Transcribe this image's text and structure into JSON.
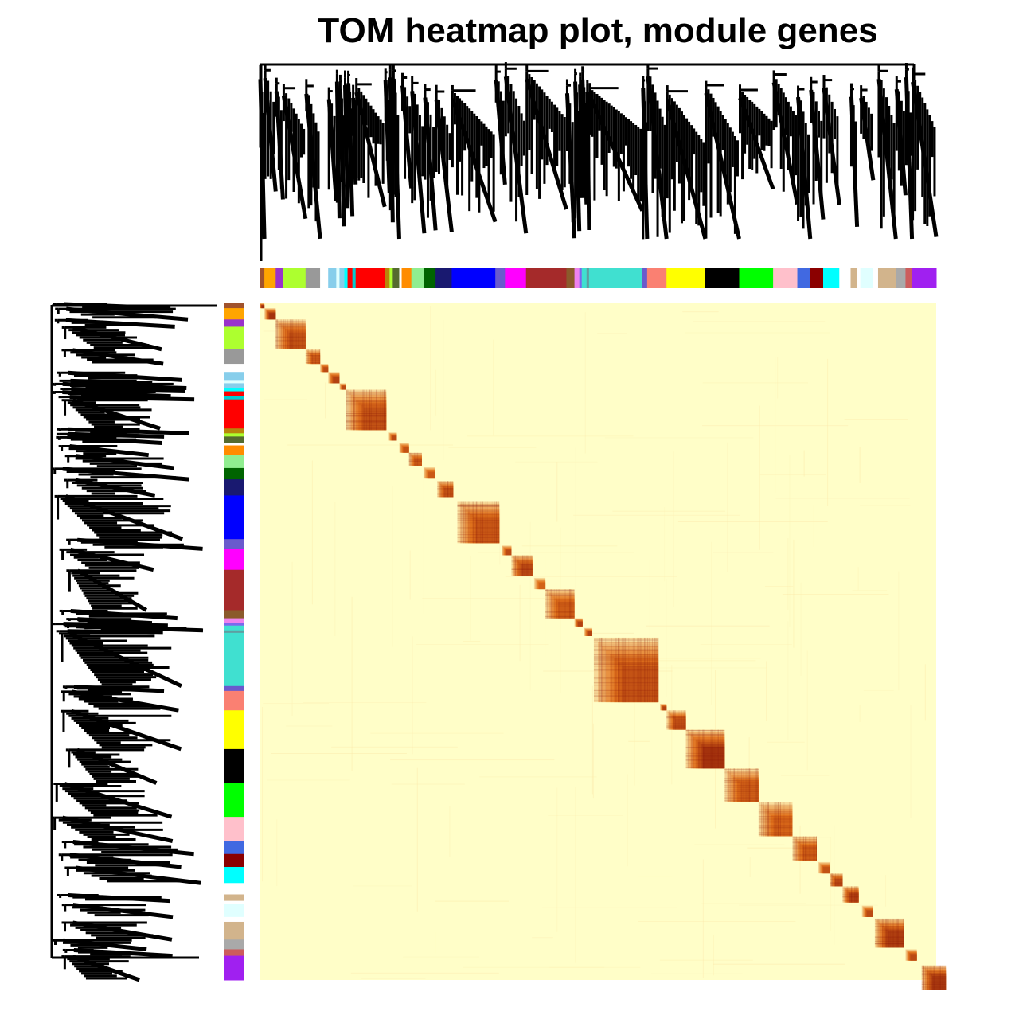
{
  "chart_data": {
    "type": "heatmap",
    "title": "TOM heatmap plot, module genes",
    "xlabel": "",
    "ylabel": "",
    "legend": "none",
    "grid": false,
    "palette": {
      "background": "#fffec8",
      "low": "#fbe6a6",
      "mid": "#e0701a",
      "high": "#8b1a0a",
      "dendrogram": "#000000"
    },
    "modules": [
      {
        "color": "#a0522d",
        "size": 6
      },
      {
        "color": "#ffa500",
        "size": 14
      },
      {
        "color": "#9932cc",
        "size": 9
      },
      {
        "color": "#adff2f",
        "size": 28
      },
      {
        "color": "#999999",
        "size": 18
      },
      {
        "color": "#ffffff",
        "size": 10
      },
      {
        "color": "#87ceeb",
        "size": 10
      },
      {
        "color": "#e0ffff",
        "size": 4
      },
      {
        "color": "#87ceeb",
        "size": 6
      },
      {
        "color": "#00ffff",
        "size": 4
      },
      {
        "color": "#ff0000",
        "size": 6
      },
      {
        "color": "#00ced1",
        "size": 4
      },
      {
        "color": "#ff0000",
        "size": 36
      },
      {
        "color": "#b8860b",
        "size": 6
      },
      {
        "color": "#adff2f",
        "size": 4
      },
      {
        "color": "#556b2f",
        "size": 8
      },
      {
        "color": "#ffffff",
        "size": 3
      },
      {
        "color": "#ff8c00",
        "size": 12
      },
      {
        "color": "#90ee90",
        "size": 16
      },
      {
        "color": "#006400",
        "size": 14
      },
      {
        "color": "#191970",
        "size": 20
      },
      {
        "color": "#0000ff",
        "size": 54
      },
      {
        "color": "#6a5acd",
        "size": 12
      },
      {
        "color": "#ff00ff",
        "size": 26
      },
      {
        "color": "#a52a2a",
        "size": 50
      },
      {
        "color": "#8b5a2b",
        "size": 10
      },
      {
        "color": "#ee82ee",
        "size": 6
      },
      {
        "color": "#7b68ee",
        "size": 3
      },
      {
        "color": "#40e0d0",
        "size": 6
      },
      {
        "color": "#5f9ea0",
        "size": 3
      },
      {
        "color": "#40e0d0",
        "size": 66
      },
      {
        "color": "#6a5acd",
        "size": 6
      },
      {
        "color": "#fa8072",
        "size": 24
      },
      {
        "color": "#ffff00",
        "size": 48
      },
      {
        "color": "#000000",
        "size": 42
      },
      {
        "color": "#00ff00",
        "size": 42
      },
      {
        "color": "#ffc0cb",
        "size": 30
      },
      {
        "color": "#4169e1",
        "size": 16
      },
      {
        "color": "#8b0000",
        "size": 16
      },
      {
        "color": "#00ffff",
        "size": 20
      },
      {
        "color": "#ffffff",
        "size": 14
      },
      {
        "color": "#d2b48c",
        "size": 8
      },
      {
        "color": "#ffffff",
        "size": 4
      },
      {
        "color": "#e0ffff",
        "size": 16
      },
      {
        "color": "#ffffff",
        "size": 6
      },
      {
        "color": "#d2b48c",
        "size": 22
      },
      {
        "color": "#a9a9a9",
        "size": 12
      },
      {
        "color": "#cd5c5c",
        "size": 8
      },
      {
        "color": "#a020f0",
        "size": 30
      }
    ],
    "blocks": [
      {
        "start": 0,
        "size": 6,
        "intensity": 1.0
      },
      {
        "start": 6,
        "size": 14,
        "intensity": 0.95
      },
      {
        "start": 20,
        "size": 37,
        "intensity": 0.75
      },
      {
        "start": 57,
        "size": 18,
        "intensity": 0.7
      },
      {
        "start": 75,
        "size": 10,
        "intensity": 0.8
      },
      {
        "start": 85,
        "size": 14,
        "intensity": 0.85
      },
      {
        "start": 99,
        "size": 8,
        "intensity": 0.8
      },
      {
        "start": 107,
        "size": 50,
        "intensity": 0.75
      },
      {
        "start": 160,
        "size": 10,
        "intensity": 0.8
      },
      {
        "start": 173,
        "size": 12,
        "intensity": 0.75
      },
      {
        "start": 185,
        "size": 16,
        "intensity": 0.7
      },
      {
        "start": 203,
        "size": 14,
        "intensity": 0.7
      },
      {
        "start": 220,
        "size": 20,
        "intensity": 0.75
      },
      {
        "start": 245,
        "size": 52,
        "intensity": 0.72
      },
      {
        "start": 300,
        "size": 12,
        "intensity": 0.8
      },
      {
        "start": 312,
        "size": 26,
        "intensity": 0.8
      },
      {
        "start": 340,
        "size": 14,
        "intensity": 0.65
      },
      {
        "start": 354,
        "size": 36,
        "intensity": 0.68
      },
      {
        "start": 390,
        "size": 10,
        "intensity": 0.85
      },
      {
        "start": 402,
        "size": 10,
        "intensity": 0.85
      },
      {
        "start": 414,
        "size": 80,
        "intensity": 0.74
      },
      {
        "start": 496,
        "size": 8,
        "intensity": 0.85
      },
      {
        "start": 504,
        "size": 24,
        "intensity": 0.78
      },
      {
        "start": 528,
        "size": 48,
        "intensity": 0.95
      },
      {
        "start": 576,
        "size": 42,
        "intensity": 0.68
      },
      {
        "start": 618,
        "size": 42,
        "intensity": 0.62
      },
      {
        "start": 660,
        "size": 30,
        "intensity": 0.68
      },
      {
        "start": 692,
        "size": 14,
        "intensity": 0.75
      },
      {
        "start": 706,
        "size": 16,
        "intensity": 0.8
      },
      {
        "start": 722,
        "size": 20,
        "intensity": 0.85
      },
      {
        "start": 746,
        "size": 14,
        "intensity": 0.8
      },
      {
        "start": 762,
        "size": 36,
        "intensity": 0.88
      },
      {
        "start": 800,
        "size": 14,
        "intensity": 0.8
      },
      {
        "start": 820,
        "size": 30,
        "intensity": 0.92
      }
    ]
  }
}
